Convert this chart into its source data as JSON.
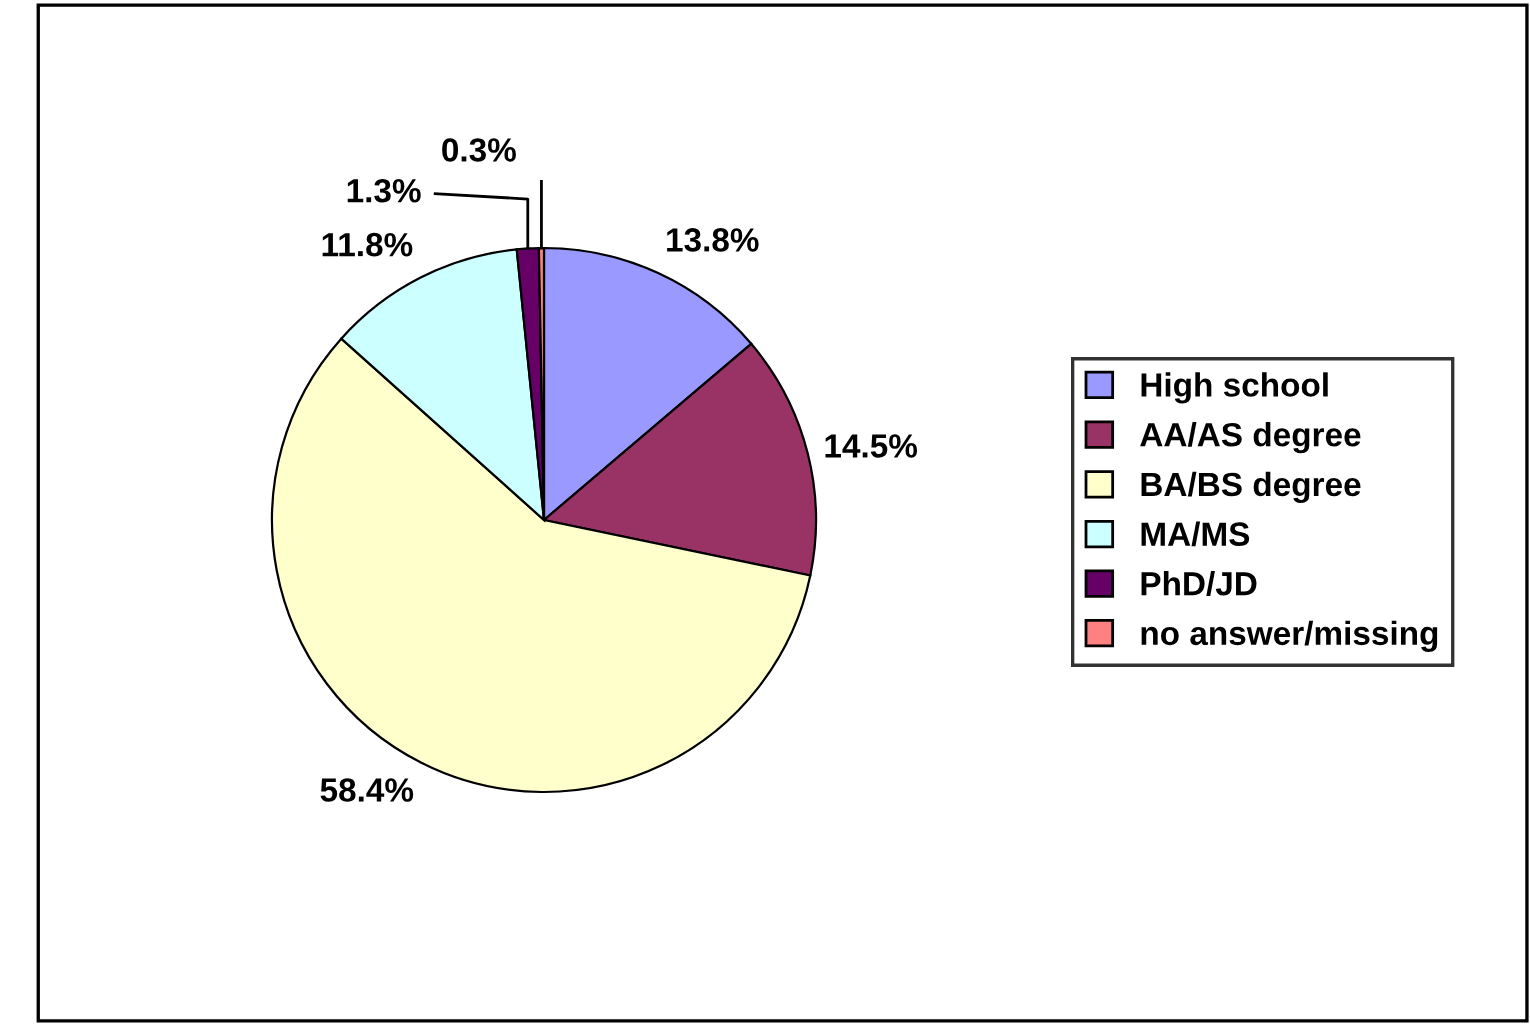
{
  "chart_data": {
    "type": "pie",
    "categories": [
      "High school",
      "AA/AS degree",
      "BA/BS degree",
      "MA/MS",
      "PhD/JD",
      "no answer/missing"
    ],
    "values": [
      13.8,
      14.5,
      58.4,
      11.8,
      1.3,
      0.3
    ],
    "colors": [
      "#9999ff",
      "#993366",
      "#ffffcc",
      "#ccffff",
      "#660066",
      "#ff8080"
    ],
    "value_labels": [
      "13.8%",
      "14.5%",
      "58.4%",
      "11.8%",
      "1.3%",
      "0.3%"
    ],
    "legend": "right"
  }
}
